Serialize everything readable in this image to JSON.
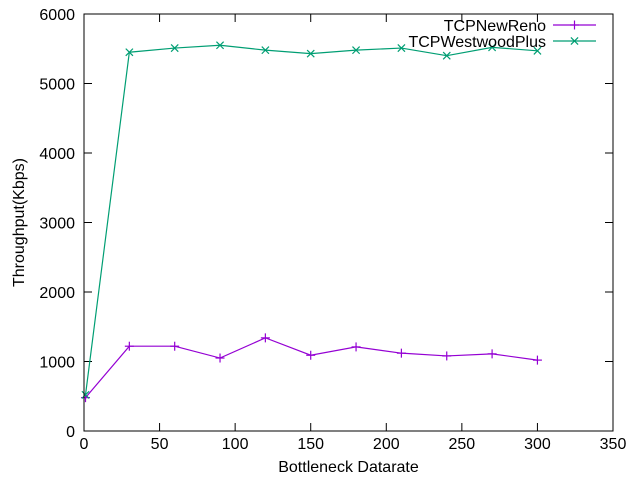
{
  "chart_data": {
    "type": "line",
    "xlabel": "Bottleneck Datarate",
    "ylabel": "Throughput(Kbps)",
    "xlim": [
      0,
      350
    ],
    "ylim": [
      0,
      6000
    ],
    "xticks": [
      0,
      50,
      100,
      150,
      200,
      250,
      300,
      350
    ],
    "yticks": [
      0,
      1000,
      2000,
      3000,
      4000,
      5000,
      6000
    ],
    "grid": false,
    "legend_position": "top-right",
    "series": [
      {
        "name": "TCPNewReno",
        "color": "#9400d3",
        "marker": "plus",
        "x": [
          1,
          30,
          60,
          90,
          120,
          150,
          180,
          210,
          240,
          270,
          300
        ],
        "y": [
          480,
          1220,
          1220,
          1050,
          1340,
          1090,
          1210,
          1120,
          1080,
          1110,
          1020
        ]
      },
      {
        "name": "TCPWestwoodPlus",
        "color": "#009e73",
        "marker": "cross",
        "x": [
          1,
          30,
          60,
          90,
          120,
          150,
          180,
          210,
          240,
          270,
          300
        ],
        "y": [
          520,
          5450,
          5510,
          5550,
          5480,
          5430,
          5480,
          5510,
          5400,
          5520,
          5470
        ]
      }
    ]
  }
}
